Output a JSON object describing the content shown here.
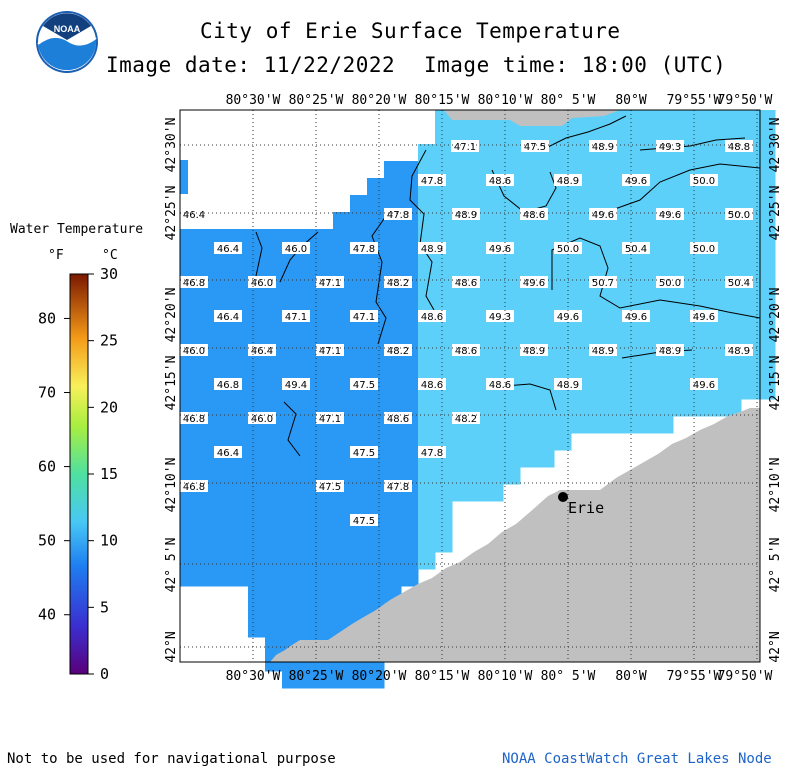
{
  "title": "City of Erie Surface Temperature",
  "image_date": "Image date: 11/22/2022",
  "image_time": "Image time: 18:00 (UTC)",
  "logo_text": "NOAA",
  "legend": {
    "title": "Water Temperature",
    "unit_f": "°F",
    "unit_c": "°C",
    "f_ticks": [
      "80",
      "70",
      "60",
      "50",
      "40"
    ],
    "c_ticks": [
      "30",
      "25",
      "20",
      "15",
      "10",
      "5",
      "0"
    ]
  },
  "map": {
    "lon_labels": [
      "80°30'W",
      "80°25'W",
      "80°20'W",
      "80°15'W",
      "80°10'W",
      "80° 5'W",
      "80°W",
      "79°55'W",
      "79°50'W"
    ],
    "lat_labels": [
      "42°30'N",
      "42°25'N",
      "42°20'N",
      "42°15'N",
      "42°10'N",
      "42° 5'N",
      "42°N"
    ],
    "city": "Erie",
    "temperature_labels": [
      "47.1",
      "47.5",
      "48.9",
      "49.3",
      "48.8",
      "47.8",
      "48.6",
      "48.9",
      "49.6",
      "50.0",
      "46.4",
      "47.8",
      "48.9",
      "48.6",
      "49.6",
      "49.6",
      "50.0",
      "46.4",
      "46.0",
      "47.8",
      "48.9",
      "49.6",
      "50.0",
      "50.4",
      "50.0",
      "46.8",
      "46.0",
      "47.1",
      "48.2",
      "48.6",
      "49.6",
      "50.7",
      "50.0",
      "50.4",
      "46.4",
      "47.1",
      "47.1",
      "48.6",
      "49.3",
      "49.6",
      "49.6",
      "49.6",
      "46.0",
      "46.4",
      "47.1",
      "48.2",
      "48.6",
      "48.9",
      "48.9",
      "48.9",
      "48.9",
      "46.8",
      "49.4",
      "47.5",
      "48.6",
      "48.6",
      "48.9",
      "49.6",
      "46.8",
      "46.0",
      "47.1",
      "48.6",
      "48.2",
      "46.4",
      "47.5",
      "47.8",
      "46.8",
      "47.5",
      "47.8",
      "47.5"
    ]
  },
  "footer": {
    "left": "Not to be used for navigational purpose",
    "right": "NOAA CoastWatch Great Lakes Node"
  },
  "colors": {
    "water_mid": "#2a98f5",
    "water_warm": "#5cd0f8",
    "land": "#c0c0c0",
    "footer_right": "#1e64c8"
  }
}
